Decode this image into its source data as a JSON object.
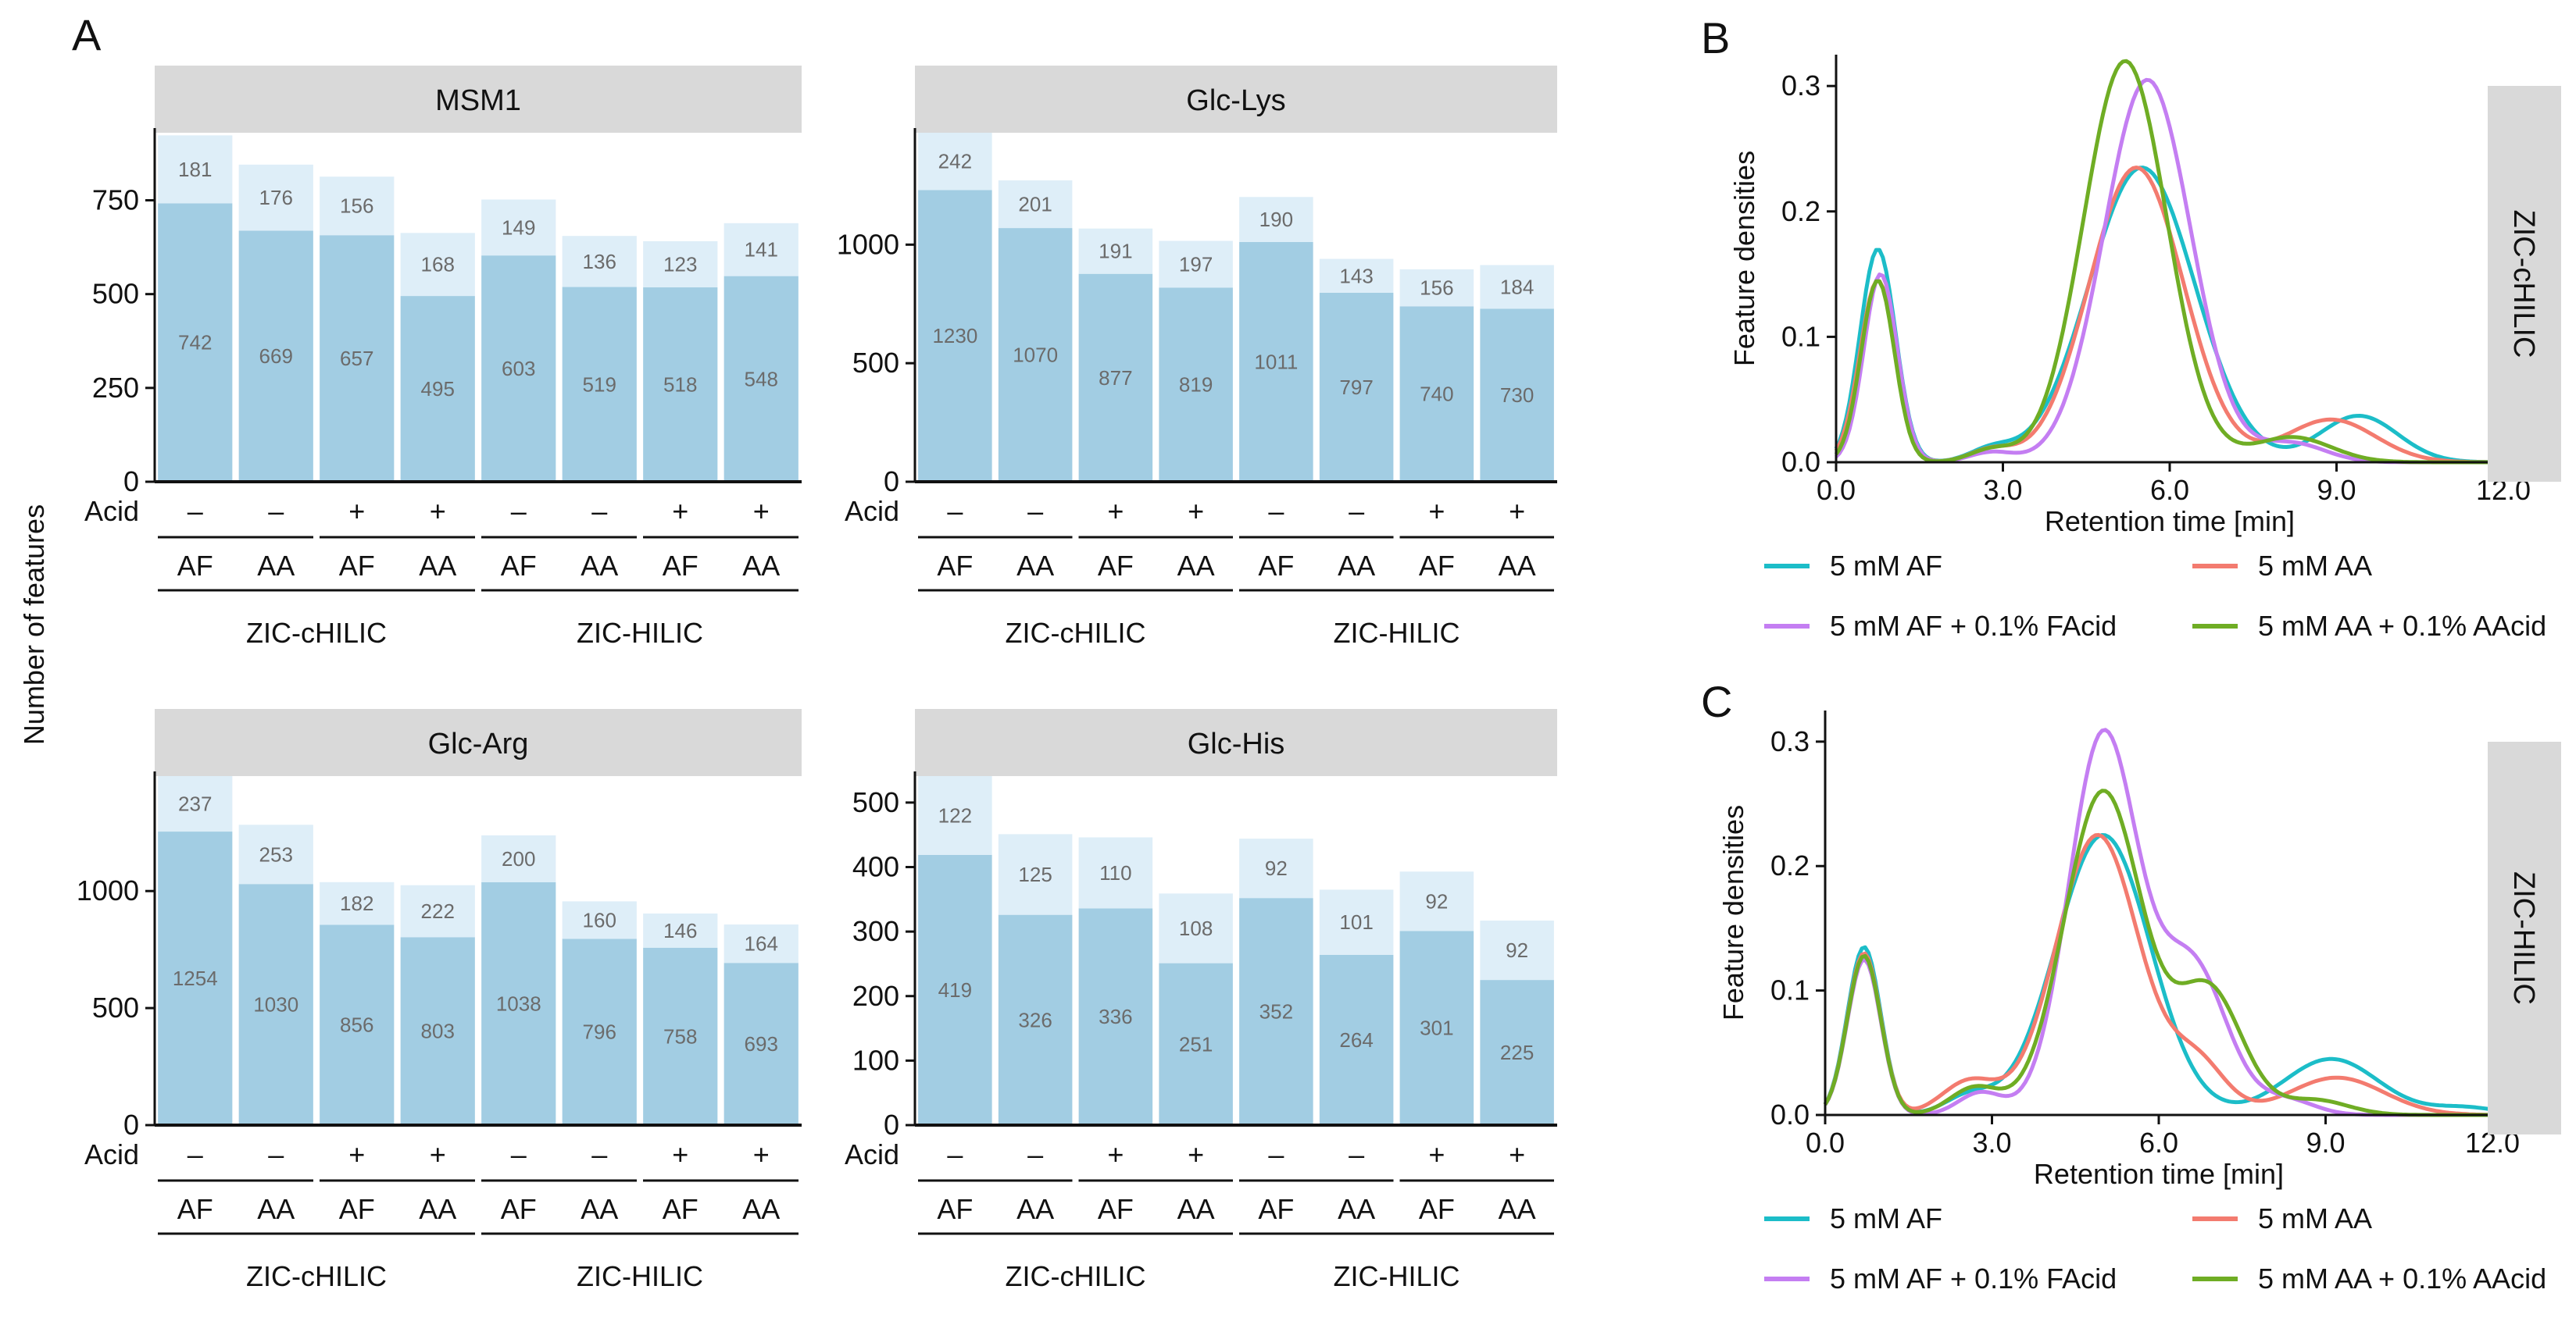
{
  "figure": {
    "panel_letters": [
      "A",
      "B",
      "C"
    ],
    "ylabel_A": "Number of features",
    "acid_row_label": "Acid",
    "column_factor": {
      "acid": [
        "–",
        "–",
        "+",
        "+",
        "–",
        "–",
        "+",
        "+"
      ],
      "buffer": [
        "AF",
        "AA",
        "AF",
        "AA",
        "AF",
        "AA",
        "AF",
        "AA"
      ],
      "column": [
        "ZIC-cHILIC",
        "ZIC-HILIC"
      ]
    }
  },
  "chart_data": [
    {
      "type": "bar",
      "stacked": true,
      "title": "MSM1",
      "categories": [
        "AF",
        "AA",
        "AF",
        "AA",
        "AF",
        "AA",
        "AF",
        "AA"
      ],
      "ylabel": "Number of features",
      "ylim": [
        0,
        930
      ],
      "yticks": [
        0,
        250,
        500,
        750
      ],
      "series": [
        {
          "name": "base",
          "color": "#a2cde3",
          "values": [
            742,
            669,
            657,
            495,
            603,
            519,
            518,
            548
          ]
        },
        {
          "name": "top",
          "color": "#deeef8",
          "values": [
            181,
            176,
            156,
            168,
            149,
            136,
            123,
            141
          ]
        }
      ]
    },
    {
      "type": "bar",
      "stacked": true,
      "title": "Glc-Lys",
      "categories": [
        "AF",
        "AA",
        "AF",
        "AA",
        "AF",
        "AA",
        "AF",
        "AA"
      ],
      "ylabel": "Number of features",
      "ylim": [
        0,
        1472
      ],
      "yticks": [
        0,
        500,
        1000
      ],
      "series": [
        {
          "name": "base",
          "color": "#a2cde3",
          "values": [
            1230,
            1070,
            877,
            819,
            1011,
            797,
            740,
            730
          ]
        },
        {
          "name": "top",
          "color": "#deeef8",
          "values": [
            242,
            201,
            191,
            197,
            190,
            143,
            156,
            184
          ]
        }
      ]
    },
    {
      "type": "bar",
      "stacked": true,
      "title": "Glc-Arg",
      "categories": [
        "AF",
        "AA",
        "AF",
        "AA",
        "AF",
        "AA",
        "AF",
        "AA"
      ],
      "ylabel": "Number of features",
      "ylim": [
        0,
        1491
      ],
      "yticks": [
        0,
        500,
        1000
      ],
      "series": [
        {
          "name": "base",
          "color": "#a2cde3",
          "values": [
            1254,
            1030,
            856,
            803,
            1038,
            796,
            758,
            693
          ]
        },
        {
          "name": "top",
          "color": "#deeef8",
          "values": [
            237,
            253,
            182,
            222,
            200,
            160,
            146,
            164
          ]
        }
      ]
    },
    {
      "type": "bar",
      "stacked": true,
      "title": "Glc-His",
      "categories": [
        "AF",
        "AA",
        "AF",
        "AA",
        "AF",
        "AA",
        "AF",
        "AA"
      ],
      "ylabel": "Number of features",
      "ylim": [
        0,
        541
      ],
      "yticks": [
        0,
        100,
        200,
        300,
        400,
        500
      ],
      "series": [
        {
          "name": "base",
          "color": "#a2cde3",
          "values": [
            419,
            326,
            336,
            251,
            352,
            264,
            301,
            225
          ]
        },
        {
          "name": "top",
          "color": "#deeef8",
          "values": [
            122,
            125,
            110,
            108,
            92,
            101,
            92,
            92
          ]
        }
      ]
    },
    {
      "type": "line",
      "title": "ZIC-cHILIC",
      "xlabel": "Retention time [min]",
      "ylabel": "Feature densities",
      "xlim": [
        0,
        12
      ],
      "ylim": [
        0,
        0.325
      ],
      "xticks": [
        "0.0",
        "3.0",
        "6.0",
        "9.0",
        "12.0"
      ],
      "yticks": [
        "0.0",
        "0.1",
        "0.2",
        "0.3"
      ],
      "series": [
        {
          "name": "5 mM AF",
          "color": "#1cbdc8",
          "peaks": [
            [
              0.75,
              0.17,
              0.32
            ],
            [
              2.8,
              0.01,
              0.4
            ],
            [
              5.5,
              0.235,
              0.95
            ],
            [
              9.4,
              0.037,
              0.7
            ]
          ]
        },
        {
          "name": "5 mM AA",
          "color": "#f37b6f",
          "peaks": [
            [
              0.75,
              0.145,
              0.32
            ],
            [
              2.8,
              0.01,
              0.4
            ],
            [
              5.4,
              0.235,
              0.85
            ],
            [
              8.9,
              0.034,
              0.8
            ]
          ]
        },
        {
          "name": "5 mM AF + 0.1% FAcid",
          "color": "#c47ef2",
          "peaks": [
            [
              0.8,
              0.15,
              0.3
            ],
            [
              2.8,
              0.008,
              0.4
            ],
            [
              5.6,
              0.305,
              0.78
            ],
            [
              8.2,
              0.015,
              0.6
            ]
          ]
        },
        {
          "name": "5 mM AA + 0.1% AAcid",
          "color": "#6fad24",
          "peaks": [
            [
              0.75,
              0.145,
              0.3
            ],
            [
              2.8,
              0.01,
              0.4
            ],
            [
              5.2,
              0.32,
              0.75
            ],
            [
              8.2,
              0.02,
              0.7
            ]
          ]
        }
      ]
    },
    {
      "type": "line",
      "title": "ZIC-HILIC",
      "xlabel": "Retention time [min]",
      "ylabel": "Feature densities",
      "xlim": [
        0,
        12
      ],
      "ylim": [
        0,
        0.325
      ],
      "xticks": [
        "0.0",
        "3.0",
        "6.0",
        "9.0",
        "12.0"
      ],
      "yticks": [
        "0.0",
        "0.1",
        "0.2",
        "0.3"
      ],
      "series": [
        {
          "name": "5 mM AF",
          "color": "#1cbdc8",
          "peaks": [
            [
              0.7,
              0.135,
              0.3
            ],
            [
              2.6,
              0.015,
              0.45
            ],
            [
              5.0,
              0.225,
              0.85
            ],
            [
              9.1,
              0.045,
              0.85
            ],
            [
              11.5,
              0.006,
              0.6
            ]
          ]
        },
        {
          "name": "5 mM AA",
          "color": "#f37b6f",
          "peaks": [
            [
              0.7,
              0.13,
              0.3
            ],
            [
              2.6,
              0.027,
              0.5
            ],
            [
              4.9,
              0.225,
              0.75
            ],
            [
              6.7,
              0.04,
              0.5
            ],
            [
              9.2,
              0.03,
              0.85
            ]
          ]
        },
        {
          "name": "5 mM AF + 0.1% FAcid",
          "color": "#c47ef2",
          "peaks": [
            [
              0.7,
              0.125,
              0.3
            ],
            [
              2.8,
              0.018,
              0.4
            ],
            [
              5.0,
              0.305,
              0.62
            ],
            [
              6.6,
              0.12,
              0.62
            ],
            [
              8.3,
              0.012,
              0.5
            ]
          ]
        },
        {
          "name": "5 mM AA + 0.1% AAcid",
          "color": "#6fad24",
          "peaks": [
            [
              0.7,
              0.128,
              0.3
            ],
            [
              2.7,
              0.022,
              0.45
            ],
            [
              5.0,
              0.26,
              0.7
            ],
            [
              6.9,
              0.1,
              0.6
            ],
            [
              8.8,
              0.012,
              0.6
            ]
          ]
        }
      ]
    }
  ]
}
